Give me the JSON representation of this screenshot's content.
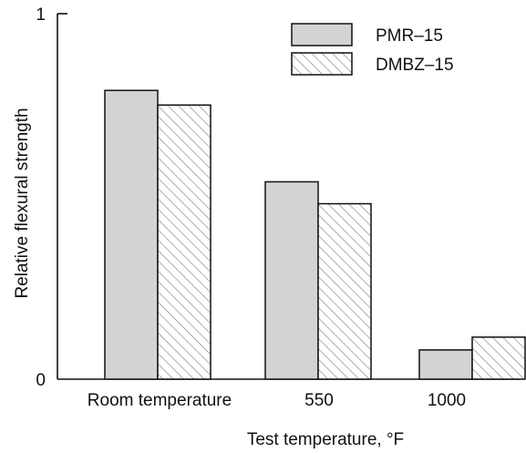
{
  "chart_data": {
    "type": "bar",
    "title": "",
    "xlabel": "Test temperature, °F",
    "ylabel": "Relative flexural strength",
    "categories": [
      "Room temperature",
      "550",
      "1000"
    ],
    "series": [
      {
        "name": "PMR–15",
        "values": [
          0.79,
          0.54,
          0.08
        ],
        "fill": "#d3d3d3",
        "pattern": "solid"
      },
      {
        "name": "DMBZ–15",
        "values": [
          0.75,
          0.48,
          0.115
        ],
        "fill": "#ffffff",
        "pattern": "diagonal-hatch"
      }
    ],
    "ylim": [
      0,
      1
    ],
    "yticks": [
      {
        "value": 0,
        "label": "0"
      },
      {
        "value": 1,
        "label": "1"
      }
    ],
    "grid": false,
    "legend_position": "top-right"
  }
}
